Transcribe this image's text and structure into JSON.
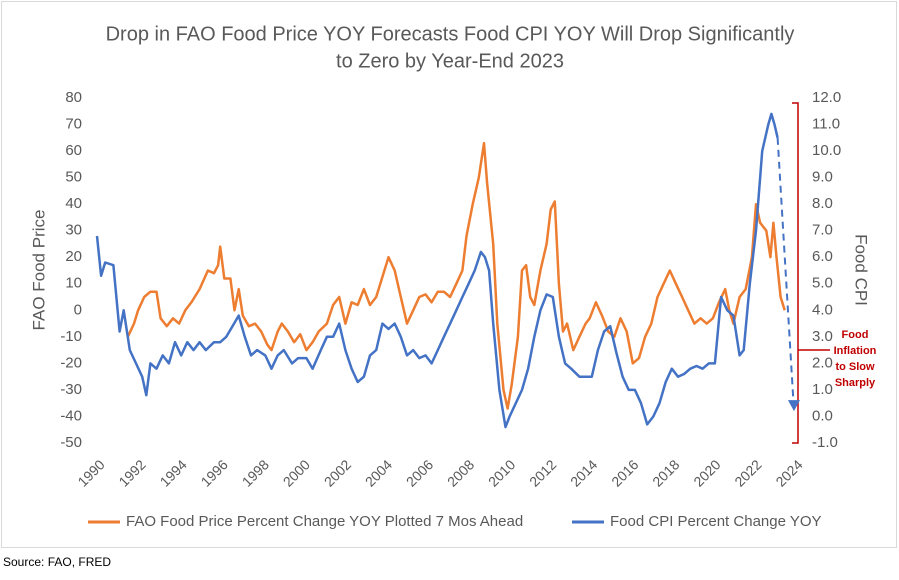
{
  "chart_data": {
    "type": "line",
    "title": [
      "Drop in FAO Food Price YOY Forecasts Food CPI YOY Will Drop Significantly",
      "to Zero by Year-End 2023"
    ],
    "ylabel": "FAO Food Price",
    "y2label": "Food CPI",
    "xlim": [
      1990,
      2024
    ],
    "xticks": [
      1990,
      1992,
      1994,
      1996,
      1998,
      2000,
      2002,
      2004,
      2006,
      2008,
      2010,
      2012,
      2014,
      2016,
      2018,
      2020,
      2022,
      2024
    ],
    "ylim": [
      -50,
      80
    ],
    "yticks": [
      80,
      70,
      60,
      50,
      40,
      30,
      20,
      10,
      0,
      -10,
      -20,
      -30,
      -40,
      -50
    ],
    "y2lim": [
      -1,
      12
    ],
    "y2ticks": [
      {
        "value": 12,
        "label": "12.0"
      },
      {
        "value": 11,
        "label": "11.0"
      },
      {
        "value": 10,
        "label": "10.0"
      },
      {
        "value": 9,
        "label": "9.0"
      },
      {
        "value": 8,
        "label": "8.0"
      },
      {
        "value": 7,
        "label": "7.0"
      },
      {
        "value": 6,
        "label": "6.0"
      },
      {
        "value": 5,
        "label": "5.0"
      },
      {
        "value": 4,
        "label": "4.0"
      },
      {
        "value": 3,
        "label": "3.0"
      },
      {
        "value": 2,
        "label": "2.0"
      },
      {
        "value": 1,
        "label": "1.0"
      },
      {
        "value": 0,
        "label": "0.0"
      },
      {
        "value": -1,
        "label": "-1.0"
      }
    ],
    "series": [
      {
        "name": "FAO Food Price Percent Change YOY Plotted 7 Mos Ahead",
        "color": "#ed7d31",
        "axis": "y",
        "x": [
          1991.5,
          1991.8,
          1992.0,
          1992.3,
          1992.6,
          1992.9,
          1993.1,
          1993.4,
          1993.7,
          1994.0,
          1994.3,
          1994.6,
          1995.0,
          1995.4,
          1995.7,
          1995.9,
          1996.0,
          1996.2,
          1996.5,
          1996.7,
          1996.9,
          1997.1,
          1997.4,
          1997.7,
          1998.0,
          1998.3,
          1998.5,
          1998.8,
          1999.0,
          1999.3,
          1999.6,
          1999.9,
          2000.2,
          2000.5,
          2000.8,
          2001.2,
          2001.5,
          2001.8,
          2002.1,
          2002.4,
          2002.7,
          2003.0,
          2003.3,
          2003.6,
          2004.0,
          2004.2,
          2004.5,
          2004.8,
          2005.1,
          2005.4,
          2005.7,
          2006.0,
          2006.3,
          2006.6,
          2006.9,
          2007.2,
          2007.5,
          2007.8,
          2008.0,
          2008.3,
          2008.6,
          2008.85,
          2009.0,
          2009.3,
          2009.5,
          2009.8,
          2010.0,
          2010.2,
          2010.5,
          2010.7,
          2010.9,
          2011.1,
          2011.3,
          2011.6,
          2011.9,
          2012.1,
          2012.3,
          2012.5,
          2012.7,
          2012.9,
          2013.2,
          2013.5,
          2013.8,
          2014.0,
          2014.3,
          2014.6,
          2014.9,
          2015.2,
          2015.5,
          2015.8,
          2016.1,
          2016.4,
          2016.7,
          2017.0,
          2017.3,
          2017.6,
          2017.9,
          2018.2,
          2018.5,
          2018.8,
          2019.1,
          2019.4,
          2019.7,
          2020.0,
          2020.3,
          2020.6,
          2020.8,
          2021.0,
          2021.3,
          2021.6,
          2021.9,
          2022.1,
          2022.3,
          2022.6,
          2022.8,
          2022.95,
          2023.1,
          2023.3,
          2023.5
        ],
        "values": [
          -10,
          -5,
          0,
          5,
          7,
          7,
          -3,
          -6,
          -3,
          -5,
          0,
          3,
          8,
          15,
          14,
          17,
          24,
          12,
          12,
          0,
          8,
          -2,
          -6,
          -5,
          -8,
          -13,
          -15,
          -8,
          -5,
          -8,
          -12,
          -9,
          -15,
          -12,
          -8,
          -5,
          2,
          5,
          -5,
          3,
          2,
          8,
          2,
          5,
          15,
          20,
          15,
          5,
          -5,
          0,
          5,
          6,
          3,
          7,
          7,
          5,
          10,
          15,
          28,
          40,
          50,
          63,
          48,
          25,
          -5,
          -30,
          -37,
          -28,
          -10,
          15,
          17,
          5,
          2,
          15,
          25,
          38,
          41,
          10,
          -8,
          -5,
          -15,
          -10,
          -5,
          -3,
          3,
          -2,
          -8,
          -10,
          -3,
          -8,
          -20,
          -18,
          -10,
          -5,
          5,
          10,
          15,
          10,
          5,
          0,
          -5,
          -3,
          -5,
          -3,
          3,
          8,
          0,
          -5,
          5,
          8,
          20,
          40,
          33,
          30,
          20,
          33,
          20,
          5,
          0
        ]
      },
      {
        "name": "Food CPI Percent Change YOY",
        "color": "#4472c4",
        "axis": "y2",
        "x": [
          1990.0,
          1990.2,
          1990.4,
          1990.8,
          1991.1,
          1991.3,
          1991.6,
          1991.9,
          1992.2,
          1992.4,
          1992.6,
          1992.9,
          1993.2,
          1993.5,
          1993.8,
          1994.1,
          1994.4,
          1994.7,
          1995.0,
          1995.3,
          1995.7,
          1996.0,
          1996.3,
          1996.6,
          1996.9,
          1997.2,
          1997.5,
          1997.8,
          1998.2,
          1998.5,
          1998.8,
          1999.1,
          1999.5,
          1999.8,
          2000.2,
          2000.5,
          2000.9,
          2001.2,
          2001.5,
          2001.8,
          2002.1,
          2002.4,
          2002.7,
          2003.0,
          2003.3,
          2003.6,
          2003.9,
          2004.2,
          2004.5,
          2004.8,
          2005.1,
          2005.4,
          2005.7,
          2006.0,
          2006.3,
          2006.6,
          2006.9,
          2007.2,
          2007.5,
          2007.8,
          2008.1,
          2008.4,
          2008.7,
          2008.9,
          2009.1,
          2009.3,
          2009.6,
          2009.9,
          2010.1,
          2010.4,
          2010.7,
          2011.0,
          2011.3,
          2011.6,
          2011.9,
          2012.2,
          2012.5,
          2012.8,
          2013.1,
          2013.5,
          2013.8,
          2014.1,
          2014.4,
          2014.7,
          2015.0,
          2015.3,
          2015.6,
          2015.9,
          2016.2,
          2016.5,
          2016.8,
          2017.1,
          2017.4,
          2017.7,
          2018.0,
          2018.3,
          2018.6,
          2018.9,
          2019.2,
          2019.5,
          2019.8,
          2020.1,
          2020.4,
          2020.7,
          2021.0,
          2021.3,
          2021.5,
          2021.8,
          2022.1,
          2022.4,
          2022.7,
          2022.85,
          2023.0,
          2023.15
        ],
        "values": [
          6.8,
          5.3,
          5.8,
          5.7,
          3.2,
          4.0,
          2.5,
          2.0,
          1.5,
          0.8,
          2.0,
          1.8,
          2.3,
          2.0,
          2.8,
          2.3,
          2.8,
          2.5,
          2.8,
          2.5,
          2.8,
          2.8,
          3.0,
          3.4,
          3.8,
          3.0,
          2.3,
          2.5,
          2.3,
          1.8,
          2.3,
          2.5,
          2.0,
          2.2,
          2.2,
          1.8,
          2.5,
          3.0,
          3.0,
          3.5,
          2.5,
          1.8,
          1.3,
          1.5,
          2.3,
          2.5,
          3.5,
          3.3,
          3.5,
          3.0,
          2.3,
          2.5,
          2.2,
          2.3,
          2.0,
          2.5,
          3.0,
          3.5,
          4.0,
          4.5,
          5.0,
          5.5,
          6.2,
          6.0,
          5.5,
          3.5,
          1.0,
          -0.4,
          0.0,
          0.5,
          1.0,
          1.8,
          3.0,
          4.0,
          4.6,
          4.5,
          3.0,
          2.0,
          1.8,
          1.5,
          1.5,
          1.5,
          2.5,
          3.2,
          3.4,
          2.4,
          1.5,
          1.0,
          1.0,
          0.5,
          -0.3,
          0.0,
          0.5,
          1.3,
          1.8,
          1.5,
          1.6,
          1.8,
          1.9,
          1.8,
          2.0,
          2.0,
          4.5,
          4.0,
          3.8,
          2.3,
          2.5,
          5.0,
          7.0,
          10.0,
          11.0,
          11.4,
          11.0,
          10.5
        ]
      }
    ],
    "projection": {
      "color": "#4472c4",
      "axis": "y2",
      "x": [
        2023.15,
        2023.95
      ],
      "values": [
        10.5,
        0.2
      ]
    },
    "annotation": [
      "Food",
      "Inflation",
      "to Slow",
      "Sharply"
    ],
    "source": "Source: FAO, FRED"
  }
}
